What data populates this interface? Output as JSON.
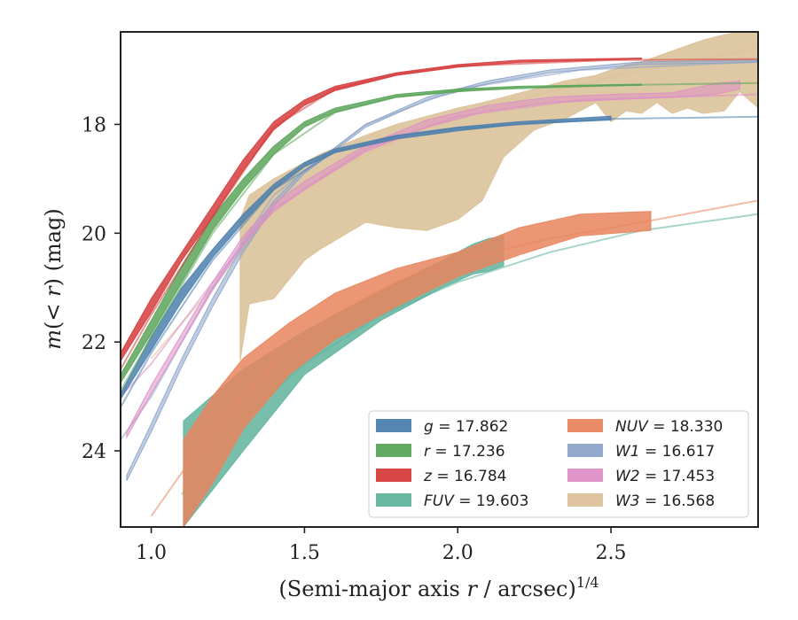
{
  "chart_data": {
    "type": "line",
    "xlabel": "(Semi-major axis r / arcsec)^1/4",
    "ylabel": "m(< r) (mag)",
    "xlim": [
      0.9,
      2.98
    ],
    "ylim": [
      25.4,
      16.3
    ],
    "y_inverted": true,
    "x_ticks": [
      {
        "value": 1.0,
        "label": "1.0"
      },
      {
        "value": 1.5,
        "label": "1.5"
      },
      {
        "value": 2.0,
        "label": "2.0"
      },
      {
        "value": 2.5,
        "label": "2.5"
      }
    ],
    "y_ticks": [
      {
        "value": 18,
        "label": "18"
      },
      {
        "value": 20,
        "label": "20"
      },
      {
        "value": 22,
        "label": "22"
      },
      {
        "value": 24,
        "label": "24"
      }
    ],
    "legend_position": "lower-right",
    "series": [
      {
        "id": "g",
        "name": "g = 17.862",
        "color": "#4c7fae",
        "kind": "band",
        "x": [
          0.9,
          1.0,
          1.1,
          1.2,
          1.3,
          1.4,
          1.5,
          1.6,
          1.8,
          2.0,
          2.2,
          2.5
        ],
        "y_lo": [
          22.95,
          21.9,
          21.0,
          20.3,
          19.65,
          19.1,
          18.7,
          18.45,
          18.2,
          18.05,
          17.95,
          17.85
        ],
        "y_hi": [
          23.05,
          22.15,
          21.25,
          20.45,
          19.8,
          19.2,
          18.78,
          18.52,
          18.27,
          18.12,
          18.0,
          17.92
        ],
        "line_x": [
          0.9,
          1.0,
          1.2,
          1.4,
          1.6,
          1.8,
          2.0,
          2.5,
          2.98
        ],
        "line_y": [
          23.2,
          22.2,
          20.5,
          19.2,
          18.5,
          18.22,
          18.07,
          17.9,
          17.86
        ]
      },
      {
        "id": "r",
        "name": "r = 17.236",
        "color": "#5aa55a",
        "kind": "band",
        "x": [
          0.9,
          1.0,
          1.1,
          1.2,
          1.3,
          1.4,
          1.5,
          1.6,
          1.8,
          2.0,
          2.2,
          2.6
        ],
        "y_lo": [
          22.6,
          21.6,
          20.6,
          19.7,
          19.0,
          18.4,
          17.95,
          17.7,
          17.45,
          17.35,
          17.3,
          17.26
        ],
        "y_hi": [
          22.75,
          21.85,
          20.9,
          19.95,
          19.2,
          18.55,
          18.05,
          17.78,
          17.5,
          17.4,
          17.33,
          17.28
        ],
        "line_x": [
          0.9,
          1.0,
          1.2,
          1.4,
          1.6,
          1.8,
          2.0,
          2.5,
          2.98
        ],
        "line_y": [
          22.9,
          21.9,
          20.0,
          18.55,
          17.78,
          17.5,
          17.38,
          17.28,
          17.24
        ]
      },
      {
        "id": "z",
        "name": "z = 16.784",
        "color": "#d63c3c",
        "kind": "band",
        "x": [
          0.9,
          1.0,
          1.1,
          1.2,
          1.3,
          1.4,
          1.5,
          1.6,
          1.8,
          2.0,
          2.2,
          2.6
        ],
        "y_lo": [
          22.2,
          21.2,
          20.35,
          19.5,
          18.65,
          17.95,
          17.55,
          17.3,
          17.05,
          16.9,
          16.82,
          16.78
        ],
        "y_hi": [
          22.35,
          21.45,
          20.5,
          19.7,
          18.85,
          18.1,
          17.65,
          17.38,
          17.1,
          16.95,
          16.86,
          16.8
        ],
        "line_x": [
          0.9,
          1.0,
          1.2,
          1.4,
          1.6,
          1.8,
          2.0,
          2.5,
          2.98
        ],
        "line_y": [
          22.5,
          21.5,
          19.7,
          18.05,
          17.35,
          17.08,
          16.93,
          16.82,
          16.8
        ]
      },
      {
        "id": "FUV",
        "name": "FUV = 19.603",
        "color": "#5fb39c",
        "kind": "band",
        "x": [
          1.105,
          1.3,
          1.5,
          1.75,
          1.95,
          2.05,
          2.1,
          2.15
        ],
        "y_lo": [
          25.4,
          24.0,
          22.6,
          21.6,
          21.0,
          20.75,
          20.7,
          20.6
        ],
        "y_hi": [
          23.45,
          22.5,
          21.8,
          21.05,
          20.5,
          20.2,
          20.1,
          20.05
        ],
        "line_x": [
          1.1,
          1.3,
          1.5,
          1.75,
          2.0,
          2.3,
          2.6,
          2.98
        ],
        "line_y": [
          24.8,
          23.4,
          22.4,
          21.5,
          20.9,
          20.35,
          19.95,
          19.65
        ]
      },
      {
        "id": "NUV",
        "name": "NUV = 18.330",
        "color": "#e8855e",
        "kind": "band",
        "x": [
          1.105,
          1.2,
          1.3,
          1.45,
          1.6,
          1.8,
          2.0,
          2.2,
          2.4,
          2.63
        ],
        "y_lo": [
          25.4,
          24.6,
          23.6,
          22.6,
          21.95,
          21.35,
          20.8,
          20.4,
          20.05,
          19.95
        ],
        "y_hi": [
          23.8,
          23.0,
          22.3,
          21.65,
          21.1,
          20.65,
          20.35,
          19.9,
          19.65,
          19.6
        ],
        "line_x": [
          1.0,
          1.2,
          1.4,
          1.6,
          1.8,
          2.0,
          2.3,
          2.6,
          2.98
        ],
        "line_y": [
          25.2,
          23.6,
          22.4,
          21.5,
          20.9,
          20.5,
          20.1,
          19.8,
          19.4
        ]
      },
      {
        "id": "W1",
        "name": "W1 = 16.617",
        "color": "#8da4c9",
        "kind": "band",
        "x": [
          0.92,
          1.0,
          1.1,
          1.2,
          1.3,
          1.4,
          1.5,
          1.7,
          1.9,
          2.1,
          2.3,
          2.6,
          2.98
        ],
        "y_lo": [
          24.45,
          23.5,
          22.3,
          21.2,
          20.2,
          19.4,
          18.85,
          18.0,
          17.5,
          17.2,
          17.0,
          16.85,
          16.82
        ],
        "y_hi": [
          24.55,
          23.65,
          22.45,
          21.35,
          20.35,
          19.5,
          18.9,
          18.05,
          17.55,
          17.25,
          17.05,
          16.9,
          16.86
        ],
        "line_x": [
          0.9,
          1.0,
          1.2,
          1.4,
          1.7,
          2.0,
          2.4,
          2.98
        ],
        "line_y": [
          23.8,
          23.0,
          21.0,
          19.3,
          18.0,
          17.35,
          17.0,
          16.85
        ]
      },
      {
        "id": "W2",
        "name": "W2 = 17.453",
        "color": "#dd8ec7",
        "kind": "band",
        "x": [
          0.92,
          1.0,
          1.1,
          1.2,
          1.3,
          1.4,
          1.5,
          1.7,
          1.9,
          2.1,
          2.3,
          2.5,
          2.7,
          2.84,
          2.92
        ],
        "y_lo": [
          23.75,
          22.95,
          22.0,
          21.05,
          20.2,
          19.6,
          19.2,
          18.5,
          18.05,
          17.75,
          17.6,
          17.55,
          17.5,
          17.45,
          17.35
        ],
        "y_hi": [
          23.65,
          22.8,
          21.85,
          20.9,
          20.05,
          19.45,
          19.05,
          18.38,
          17.92,
          17.65,
          17.5,
          17.45,
          17.42,
          17.25,
          17.2
        ],
        "line_x": [
          0.9,
          1.0,
          1.2,
          1.4,
          1.7,
          2.0,
          2.4,
          2.98
        ],
        "line_y": [
          23.0,
          22.4,
          20.9,
          19.55,
          18.45,
          17.85,
          17.55,
          17.45
        ]
      },
      {
        "id": "W3",
        "name": "W3 = 16.568",
        "color": "#dcc29a",
        "kind": "band",
        "x": [
          1.29,
          1.32,
          1.4,
          1.5,
          1.55,
          1.7,
          1.8,
          1.9,
          2.0,
          2.08,
          2.15,
          2.25,
          2.35,
          2.45,
          2.5,
          2.55,
          2.6,
          2.65,
          2.7,
          2.75,
          2.8,
          2.87,
          2.92,
          2.98
        ],
        "y_hi": [
          19.75,
          19.3,
          19.0,
          18.7,
          18.55,
          18.2,
          18.0,
          17.85,
          17.7,
          17.6,
          17.5,
          17.35,
          17.2,
          17.1,
          17.0,
          16.9,
          16.85,
          16.75,
          16.65,
          16.55,
          16.45,
          16.35,
          16.3,
          16.25
        ],
        "y_lo": [
          22.35,
          21.3,
          21.2,
          20.5,
          20.3,
          19.8,
          19.9,
          19.95,
          19.75,
          19.4,
          18.6,
          18.1,
          17.9,
          17.6,
          17.95,
          17.75,
          17.8,
          17.6,
          17.8,
          17.7,
          17.8,
          17.75,
          17.4,
          17.7
        ],
        "line_x": [
          1.0,
          1.2,
          1.4,
          1.6,
          1.8,
          2.0,
          2.3,
          2.6,
          2.98
        ],
        "line_y": [
          22.3,
          21.0,
          19.6,
          18.85,
          18.3,
          17.9,
          17.4,
          17.0,
          16.6
        ]
      }
    ],
    "legend": [
      {
        "series": "g",
        "prefix": "g",
        "value": "17.862"
      },
      {
        "series": "r",
        "prefix": "r",
        "value": "17.236"
      },
      {
        "series": "z",
        "prefix": "z",
        "value": "16.784"
      },
      {
        "series": "FUV",
        "prefix": "FUV",
        "value": "19.603"
      },
      {
        "series": "NUV",
        "prefix": "NUV",
        "value": "18.330"
      },
      {
        "series": "W1",
        "prefix": "W1",
        "value": "16.617"
      },
      {
        "series": "W2",
        "prefix": "W2",
        "value": "17.453"
      },
      {
        "series": "W3",
        "prefix": "W3",
        "value": "16.568"
      }
    ]
  }
}
